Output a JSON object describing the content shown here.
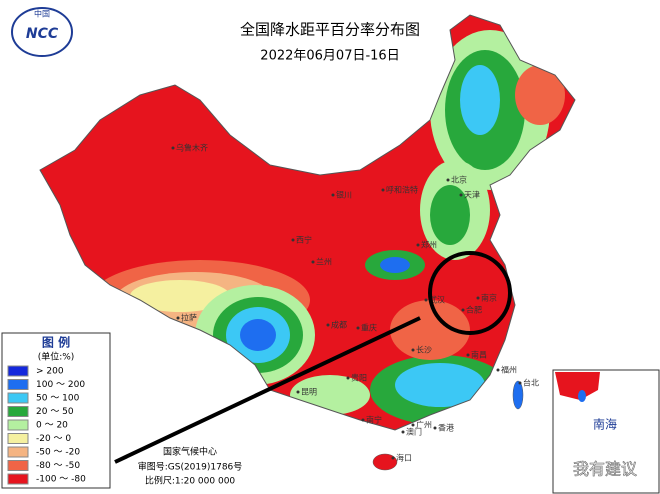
{
  "header": {
    "title": "全国降水距平百分率分布图",
    "subtitle": "2022年06月07日-16日"
  },
  "logo": {
    "text": "中国",
    "label": "NCC"
  },
  "legend": {
    "title": "图 例",
    "unit": "(单位:%)",
    "items": [
      {
        "label": "> 200",
        "color": "#1428dc"
      },
      {
        "label": "100 ～ 200",
        "color": "#1e6ef0"
      },
      {
        "label": "50 ～ 100",
        "color": "#3cc8f5"
      },
      {
        "label": "20 ～ 50",
        "color": "#28a83c"
      },
      {
        "label": "0 ～ 20",
        "color": "#b4f0a0"
      },
      {
        "label": "-20 ～ 0",
        "color": "#f5f0a0"
      },
      {
        "label": "-50 ～ -20",
        "color": "#f5b482"
      },
      {
        "label": "-80 ～ -50",
        "color": "#f06446"
      },
      {
        "label": "-100 ～ -80",
        "color": "#e6141e"
      }
    ]
  },
  "cities": [
    {
      "name": "乌鲁木齐"
    },
    {
      "name": "拉萨"
    },
    {
      "name": "西宁"
    },
    {
      "name": "兰州"
    },
    {
      "name": "成都"
    },
    {
      "name": "重庆"
    },
    {
      "name": "贵阳"
    },
    {
      "name": "昆明"
    },
    {
      "name": "南宁"
    },
    {
      "name": "广州"
    },
    {
      "name": "香港"
    },
    {
      "name": "澳门"
    },
    {
      "name": "海口"
    },
    {
      "name": "长沙"
    },
    {
      "name": "武汉"
    },
    {
      "name": "合肥"
    },
    {
      "name": "南京"
    },
    {
      "name": "南昌"
    },
    {
      "name": "福州"
    },
    {
      "name": "台北"
    },
    {
      "name": "郑州"
    },
    {
      "name": "银川"
    },
    {
      "name": "呼和浩特"
    },
    {
      "name": "北京"
    },
    {
      "name": "天津"
    }
  ],
  "footer": {
    "org": "国家气候中心",
    "approval": "审图号:GS(2019)1786号",
    "scale": "比例尺:1:20 000 000"
  },
  "inset": {
    "label": "南海"
  },
  "watermark": "我有建议"
}
